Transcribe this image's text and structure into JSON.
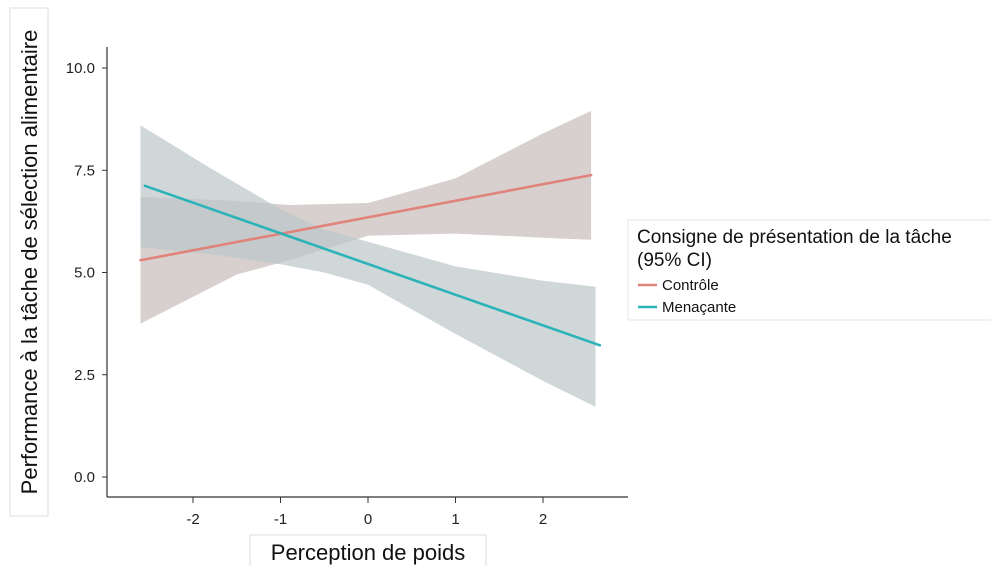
{
  "chart_data": {
    "type": "line",
    "title": "",
    "xlabel": "Perception de poids",
    "ylabel": "Performance à la tâche de sélection alimentaire",
    "xlim": [
      -2.7,
      2.95
    ],
    "ylim": [
      -0.45,
      10.5
    ],
    "x_ticks": [
      -2,
      -1,
      0,
      1,
      2
    ],
    "x_tick_labels": [
      "-2",
      "-1",
      "0",
      "1",
      "2"
    ],
    "y_ticks": [
      0.0,
      2.5,
      5.0,
      7.5,
      10.0
    ],
    "y_tick_labels": [
      "0.0",
      "2.5",
      "5.0",
      "7.5",
      "10.0"
    ],
    "grid": false,
    "legend": {
      "title_line1": "Consigne de présentation de la tâche",
      "title_line2": "(95% CI)",
      "position": "right"
    },
    "series": [
      {
        "name": "Contrôle",
        "color": "#e0837a",
        "band_color": "#c9bcbc",
        "x": [
          -2.6,
          2.55
        ],
        "y": [
          5.3,
          7.38
        ],
        "ci_x": [
          -2.6,
          -1.5,
          -0.9,
          0,
          1,
          2,
          2.55
        ],
        "ci_lower": [
          3.75,
          4.95,
          5.3,
          5.9,
          5.95,
          5.85,
          5.8
        ],
        "ci_upper": [
          6.85,
          6.75,
          6.65,
          6.7,
          7.3,
          8.4,
          8.95
        ]
      },
      {
        "name": "Menaçante",
        "color": "#2bb3b8",
        "band_color": "#bcc7c9",
        "x": [
          -2.55,
          2.65
        ],
        "y": [
          7.12,
          3.22
        ],
        "ci_x": [
          -2.6,
          -1.8,
          -1,
          -0.5,
          0,
          1,
          2,
          2.6
        ],
        "ci_lower": [
          5.62,
          5.45,
          5.2,
          5.0,
          4.7,
          3.5,
          2.35,
          1.72
        ],
        "ci_upper": [
          8.6,
          7.55,
          6.55,
          6.05,
          5.75,
          5.15,
          4.8,
          4.65
        ]
      }
    ]
  }
}
